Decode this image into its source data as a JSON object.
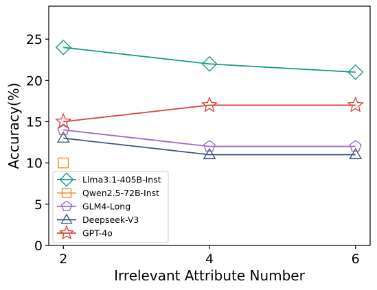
{
  "chart_data": {
    "type": "line",
    "title": "",
    "xlabel": "Irrelevant Attribute Number",
    "ylabel": "Accuracy(%)",
    "x": [
      2,
      4,
      6
    ],
    "xticks": [
      2,
      4,
      6
    ],
    "xlim": [
      1.8,
      6.2
    ],
    "ylim": [
      0,
      29
    ],
    "yticks": [
      0,
      5,
      10,
      15,
      20,
      25
    ],
    "grid": false,
    "legend": "lower-left",
    "series": [
      {
        "name": "Llma3.1-405B-Inst",
        "values": [
          24,
          22,
          21
        ],
        "color": "#139c84",
        "marker": "diamond"
      },
      {
        "name": "Qwen2.5-72B-Inst",
        "values": [
          10,
          null,
          null
        ],
        "color": "#f28a2a",
        "marker": "square"
      },
      {
        "name": "GLM4-Long",
        "values": [
          14,
          12,
          12
        ],
        "color": "#9b6bc2",
        "marker": "pentagon"
      },
      {
        "name": "Deepseek-V3",
        "values": [
          13,
          11,
          11
        ],
        "color": "#3f5580",
        "marker": "triangle"
      },
      {
        "name": "GPT-4o",
        "values": [
          15,
          17,
          17
        ],
        "color": "#d9473b",
        "marker": "star"
      }
    ]
  }
}
